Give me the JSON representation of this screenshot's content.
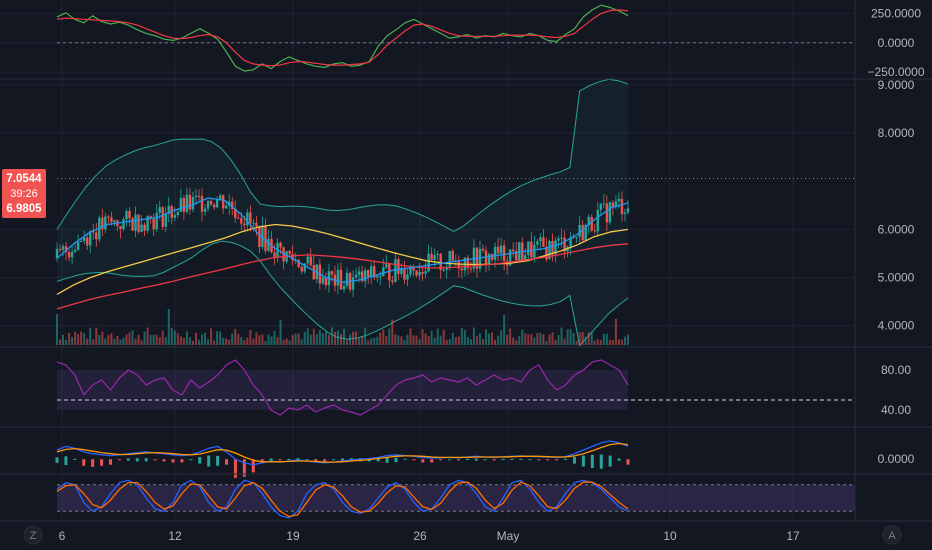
{
  "chart_data": [
    {
      "type": "line",
      "pane": "cci",
      "y_ticks": [
        "250.0000",
        "0.0000",
        "−250.0000"
      ],
      "y_tick_values": [
        250,
        0,
        -250
      ],
      "ylim": [
        -300,
        330
      ],
      "zero_line": 0,
      "x": [
        0,
        3,
        6,
        9,
        12,
        15,
        18,
        21,
        24,
        27,
        30,
        33,
        36,
        39,
        42,
        45,
        48,
        51,
        54,
        57,
        60,
        63,
        66,
        69,
        72,
        75,
        78,
        81,
        84,
        87,
        90,
        93,
        96,
        99,
        102,
        105,
        108,
        111,
        114,
        117,
        120,
        123,
        126,
        129,
        132,
        135,
        138,
        141,
        144,
        147,
        150,
        153,
        156,
        159,
        162,
        165,
        168,
        171,
        174,
        177,
        180,
        183,
        186,
        189,
        192
      ],
      "series": [
        {
          "color": "#4caf50",
          "values": [
            220,
            255,
            200,
            170,
            230,
            180,
            160,
            175,
            150,
            110,
            80,
            60,
            30,
            20,
            40,
            80,
            120,
            80,
            30,
            -80,
            -200,
            -240,
            -230,
            -180,
            -220,
            -160,
            -120,
            -150,
            -180,
            -200,
            -210,
            -180,
            -170,
            -200,
            -190,
            -160,
            -30,
            60,
            110,
            170,
            200,
            160,
            120,
            80,
            40,
            50,
            70,
            40,
            60,
            50,
            80,
            60,
            50,
            80,
            60,
            20,
            10,
            70,
            120,
            220,
            280,
            320,
            300,
            270,
            230
          ]
        },
        {
          "color": "#f23645",
          "values": [
            200,
            210,
            205,
            200,
            195,
            190,
            185,
            180,
            170,
            150,
            120,
            90,
            60,
            40,
            35,
            45,
            60,
            70,
            50,
            0,
            -80,
            -150,
            -180,
            -190,
            -195,
            -190,
            -170,
            -160,
            -165,
            -175,
            -185,
            -190,
            -190,
            -185,
            -180,
            -165,
            -100,
            -20,
            40,
            100,
            150,
            160,
            140,
            110,
            80,
            60,
            55,
            55,
            55,
            55,
            60,
            65,
            65,
            65,
            60,
            50,
            45,
            55,
            80,
            140,
            200,
            250,
            275,
            280,
            270
          ]
        }
      ]
    },
    {
      "type": "candlestick",
      "pane": "price",
      "y_ticks": [
        "9.0000",
        "8.0000",
        "6.0000",
        "5.0000",
        "4.0000"
      ],
      "y_tick_values": [
        9,
        8,
        6,
        5,
        4
      ],
      "ylim": [
        3.6,
        9.1
      ],
      "x_ticks": [
        "6",
        "12",
        "19",
        "26",
        "May",
        "10",
        "17"
      ],
      "x_tick_bar_positions": [
        0,
        37,
        74,
        112,
        146,
        186,
        223
      ],
      "last_price": "7.0544",
      "countdown": "39:26",
      "second_price": "6.9805",
      "last_price_value": 7.0544,
      "second_price_value": 6.9805,
      "series_overlays": [
        {
          "color": "#f7c948",
          "values": [
            4.65,
            4.85,
            5.0,
            5.12,
            5.22,
            5.32,
            5.42,
            5.52,
            5.62,
            5.72,
            5.82,
            5.95,
            6.05,
            6.1,
            6.07,
            6.0,
            5.92,
            5.82,
            5.72,
            5.62,
            5.52,
            5.43,
            5.35,
            5.3,
            5.28,
            5.27,
            5.28,
            5.3,
            5.35,
            5.45,
            5.55,
            5.68,
            5.85,
            5.95,
            6.0
          ]
        },
        {
          "color": "#f23645",
          "values": [
            4.35,
            4.45,
            4.55,
            4.63,
            4.7,
            4.78,
            4.85,
            4.93,
            5.02,
            5.1,
            5.18,
            5.27,
            5.35,
            5.42,
            5.45,
            5.47,
            5.45,
            5.42,
            5.38,
            5.33,
            5.28,
            5.23,
            5.2,
            5.2,
            5.22,
            5.25,
            5.28,
            5.32,
            5.37,
            5.42,
            5.48,
            5.55,
            5.62,
            5.67,
            5.7
          ]
        },
        {
          "color": "#2196f3",
          "values": [
            5.4,
            5.7,
            5.95,
            6.1,
            6.15,
            6.2,
            6.25,
            6.4,
            6.5,
            6.65,
            6.6,
            6.3,
            5.9,
            5.6,
            5.4,
            5.2,
            5.0,
            4.9,
            4.95,
            5.05,
            5.15,
            5.2,
            5.25,
            5.3,
            5.35,
            5.4,
            5.45,
            5.5,
            5.55,
            5.6,
            5.7,
            5.9,
            6.2,
            6.45,
            6.55
          ]
        }
      ]
    },
    {
      "type": "line",
      "pane": "rsi",
      "y_ticks": [
        "80.00",
        "40.00"
      ],
      "y_tick_values": [
        80,
        40
      ],
      "ylim": [
        25,
        100
      ],
      "band": [
        40,
        80
      ],
      "values": [
        88,
        85,
        75,
        55,
        65,
        70,
        60,
        72,
        80,
        75,
        65,
        70,
        72,
        60,
        55,
        70,
        62,
        68,
        75,
        85,
        90,
        80,
        65,
        55,
        40,
        35,
        42,
        40,
        45,
        38,
        42,
        45,
        40,
        38,
        35,
        40,
        45,
        55,
        65,
        70,
        72,
        75,
        68,
        72,
        70,
        68,
        72,
        65,
        70,
        75,
        70,
        72,
        68,
        80,
        85,
        70,
        60,
        65,
        75,
        80,
        88,
        90,
        85,
        80,
        65
      ],
      "color": "#9c27b0"
    },
    {
      "type": "line",
      "pane": "macd",
      "y_ticks": [
        "0.0000"
      ],
      "y_tick_values": [
        0
      ],
      "ylim": [
        -0.35,
        0.8
      ],
      "series": [
        {
          "color": "#2962ff",
          "values": [
            0.25,
            0.35,
            0.3,
            0.2,
            0.15,
            0.12,
            0.1,
            0.12,
            0.15,
            0.18,
            0.2,
            0.17,
            0.15,
            0.12,
            0.1,
            0.12,
            0.2,
            0.3,
            0.35,
            0.2,
            0.0,
            -0.1,
            -0.15,
            -0.1,
            -0.05,
            -0.08,
            -0.05,
            -0.02,
            -0.05,
            -0.08,
            -0.1,
            -0.08,
            -0.05,
            -0.02,
            0.0,
            0.02,
            0.05,
            0.1,
            0.12,
            0.1,
            0.08,
            0.05,
            0.03,
            0.04,
            0.05,
            0.04,
            0.06,
            0.08,
            0.06,
            0.05,
            0.07,
            0.08,
            0.09,
            0.08,
            0.07,
            0.06,
            0.05,
            0.07,
            0.15,
            0.25,
            0.35,
            0.45,
            0.5,
            0.45,
            0.35
          ]
        },
        {
          "color": "#ff9800",
          "values": [
            0.2,
            0.27,
            0.29,
            0.26,
            0.22,
            0.18,
            0.15,
            0.13,
            0.13,
            0.15,
            0.17,
            0.18,
            0.17,
            0.15,
            0.13,
            0.12,
            0.14,
            0.2,
            0.26,
            0.25,
            0.17,
            0.06,
            -0.03,
            -0.07,
            -0.07,
            -0.07,
            -0.06,
            -0.05,
            -0.05,
            -0.06,
            -0.08,
            -0.08,
            -0.07,
            -0.05,
            -0.03,
            -0.01,
            0.02,
            0.05,
            0.08,
            0.09,
            0.09,
            0.08,
            0.06,
            0.05,
            0.05,
            0.05,
            0.05,
            0.06,
            0.06,
            0.06,
            0.06,
            0.07,
            0.08,
            0.08,
            0.08,
            0.07,
            0.06,
            0.06,
            0.09,
            0.15,
            0.23,
            0.32,
            0.4,
            0.43,
            0.4
          ]
        }
      ]
    },
    {
      "type": "line",
      "pane": "stoch",
      "ylim": [
        0,
        100
      ],
      "band": [
        20,
        80
      ],
      "series": [
        {
          "color": "#2962ff",
          "values": [
            70,
            85,
            80,
            40,
            20,
            30,
            60,
            85,
            90,
            80,
            50,
            25,
            20,
            40,
            80,
            90,
            75,
            40,
            20,
            30,
            70,
            90,
            85,
            60,
            30,
            10,
            5,
            20,
            60,
            80,
            85,
            70,
            40,
            20,
            15,
            25,
            50,
            75,
            85,
            70,
            40,
            20,
            25,
            50,
            80,
            90,
            85,
            60,
            30,
            20,
            50,
            85,
            90,
            70,
            40,
            20,
            30,
            60,
            85,
            90,
            85,
            70,
            50,
            30,
            20
          ]
        },
        {
          "color": "#ff6d00",
          "values": [
            65,
            78,
            80,
            60,
            35,
            28,
            45,
            70,
            85,
            85,
            65,
            40,
            25,
            32,
            60,
            82,
            80,
            55,
            30,
            25,
            50,
            78,
            85,
            72,
            45,
            20,
            8,
            12,
            40,
            68,
            80,
            75,
            55,
            30,
            18,
            20,
            38,
            62,
            78,
            75,
            52,
            30,
            24,
            38,
            65,
            84,
            86,
            72,
            45,
            26,
            38,
            68,
            86,
            78,
            55,
            30,
            26,
            45,
            72,
            86,
            86,
            76,
            58,
            40,
            25
          ]
        }
      ]
    }
  ],
  "toolbar": {
    "left_button": "Z",
    "right_button": "A"
  }
}
